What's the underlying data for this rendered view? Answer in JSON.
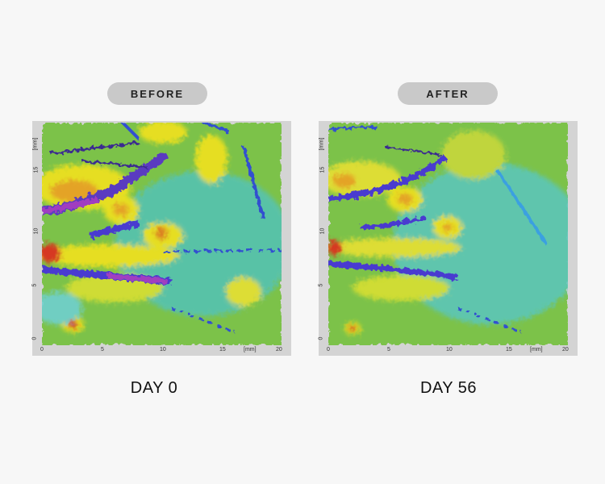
{
  "panels": [
    {
      "badge": "BEFORE",
      "caption": "DAY 0",
      "x_ticks": [
        "0",
        "5",
        "10",
        "15",
        "20"
      ],
      "y_ticks": [
        "0",
        "5",
        "10",
        "15"
      ],
      "x_unit": "[mm]",
      "y_unit": "[mm]"
    },
    {
      "badge": "AFTER",
      "caption": "DAY 56",
      "x_ticks": [
        "0",
        "5",
        "10",
        "15",
        "20"
      ],
      "y_ticks": [
        "0",
        "5",
        "10",
        "15"
      ],
      "x_unit": "[mm]",
      "y_unit": "[mm]"
    }
  ],
  "colors": {
    "background": "#f7f7f7",
    "badge": "#c9c9c9",
    "low": "#6a2fb0",
    "mid_low": "#3fb7e0",
    "mid": "#7cc24a",
    "mid_high": "#f2e21c",
    "high": "#e02a1a"
  }
}
